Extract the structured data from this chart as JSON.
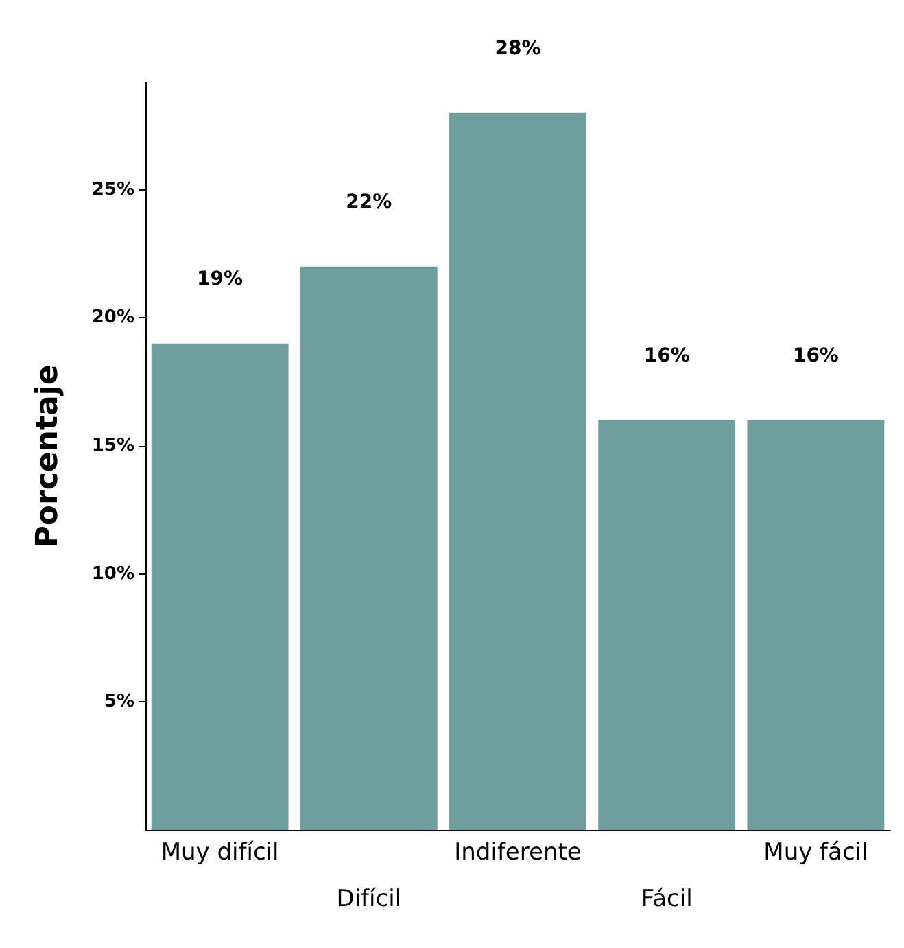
{
  "chart_data": {
    "type": "bar",
    "ylabel": "Porcentaje",
    "categories": [
      "Muy difícil",
      "Difícil",
      "Indiferente",
      "Fácil",
      "Muy fácil"
    ],
    "values": [
      19,
      22,
      28,
      16,
      16
    ],
    "value_labels": [
      "19%",
      "22%",
      "28%",
      "16%",
      "16%"
    ],
    "color": "#6e9e9e",
    "ylim": [
      0,
      29.2
    ],
    "yticks": [
      {
        "value": 5,
        "label": "5%"
      },
      {
        "value": 10,
        "label": "10%"
      },
      {
        "value": 15,
        "label": "15%"
      },
      {
        "value": 20,
        "label": "20%"
      },
      {
        "value": 25,
        "label": "25%"
      }
    ],
    "grid": false
  }
}
